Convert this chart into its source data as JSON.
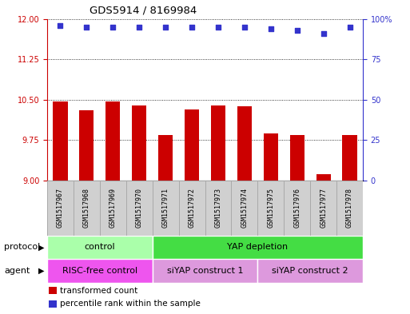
{
  "title": "GDS5914 / 8169984",
  "samples": [
    "GSM1517967",
    "GSM1517968",
    "GSM1517969",
    "GSM1517970",
    "GSM1517971",
    "GSM1517972",
    "GSM1517973",
    "GSM1517974",
    "GSM1517975",
    "GSM1517976",
    "GSM1517977",
    "GSM1517978"
  ],
  "transformed_counts": [
    10.46,
    10.3,
    10.46,
    10.4,
    9.85,
    10.32,
    10.4,
    10.38,
    9.87,
    9.85,
    9.12,
    9.85
  ],
  "percentile_ranks": [
    96,
    95,
    95,
    95,
    95,
    95,
    95,
    95,
    94,
    93,
    91,
    95
  ],
  "ylim_left": [
    9,
    12
  ],
  "ylim_right": [
    0,
    100
  ],
  "yticks_left": [
    9,
    9.75,
    10.5,
    11.25,
    12
  ],
  "yticks_right": [
    0,
    25,
    50,
    75,
    100
  ],
  "bar_color": "#cc0000",
  "dot_color": "#3333cc",
  "bar_bottom": 9,
  "protocol_groups": [
    {
      "label": "control",
      "start": 0,
      "end": 4,
      "color": "#aaffaa"
    },
    {
      "label": "YAP depletion",
      "start": 4,
      "end": 12,
      "color": "#44dd44"
    }
  ],
  "agent_groups": [
    {
      "label": "RISC-free control",
      "start": 0,
      "end": 4,
      "color": "#ee66ee"
    },
    {
      "label": "siYAP construct 1",
      "start": 4,
      "end": 8,
      "color": "#ee88ee"
    },
    {
      "label": "siYAP construct 2",
      "start": 8,
      "end": 12,
      "color": "#ee88ee"
    }
  ],
  "legend_items": [
    {
      "label": "transformed count",
      "color": "#cc0000"
    },
    {
      "label": "percentile rank within the sample",
      "color": "#3333cc"
    }
  ],
  "protocol_label": "protocol",
  "agent_label": "agent",
  "left_axis_color": "#cc0000",
  "right_axis_color": "#3333cc",
  "sample_box_color": "#d0d0d0",
  "sample_box_edge": "#aaaaaa"
}
